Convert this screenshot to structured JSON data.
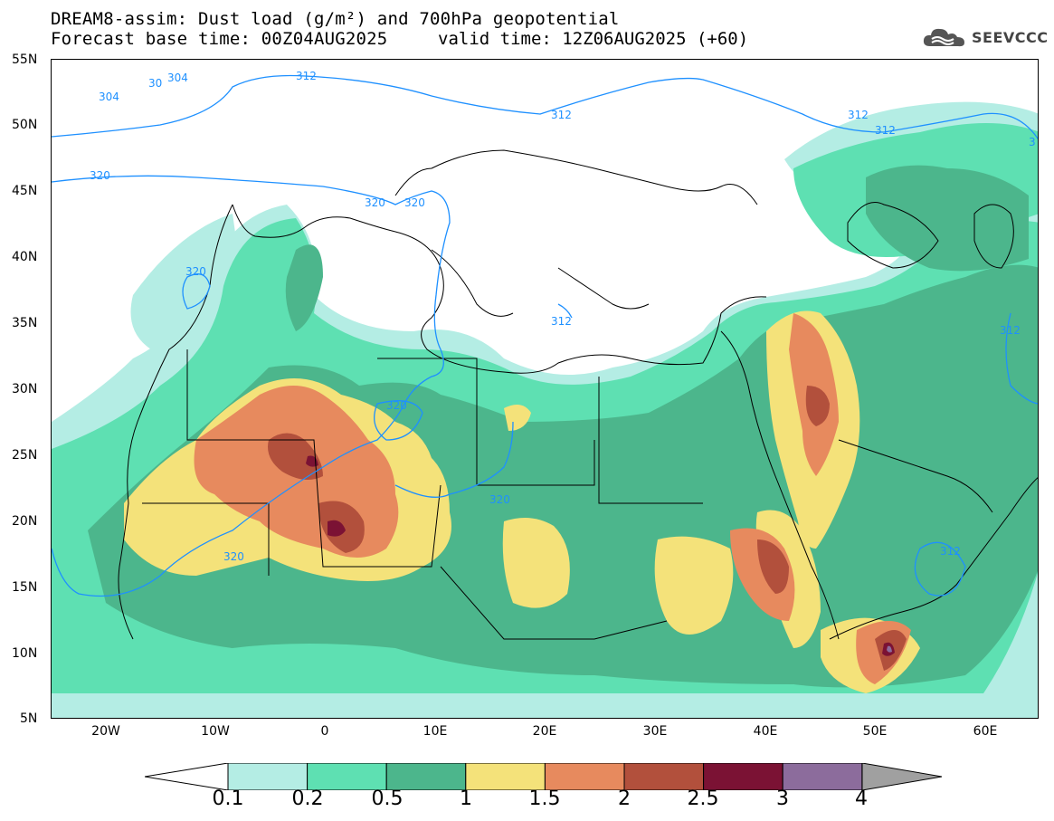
{
  "title_line1": "DREAM8-assim: Dust load (g/m²) and 700hPa geopotential",
  "title_line2": "Forecast base time: 00Z04AUG2025",
  "valid_time": "valid time: 12Z06AUG2025 (+60)",
  "logo_text": "SEEVCCC",
  "lat_labels": [
    "55N",
    "50N",
    "45N",
    "40N",
    "35N",
    "30N",
    "25N",
    "20N",
    "15N",
    "10N",
    "5N"
  ],
  "lon_labels": [
    "20W",
    "10W",
    "0",
    "10E",
    "20E",
    "30E",
    "40E",
    "50E",
    "60E"
  ],
  "contour_labels": [
    "304",
    "30",
    "304",
    "312",
    "312",
    "312",
    "320",
    "320",
    "320",
    "320",
    "320",
    "320",
    "320",
    "312",
    "312",
    "312",
    "312",
    "3"
  ],
  "colorbar": {
    "levels": [
      "0.1",
      "0.2",
      "0.5",
      "1",
      "1.5",
      "2",
      "2.5",
      "3",
      "4"
    ],
    "colors": [
      "#b4ede4",
      "#5ee0b2",
      "#4cb68c",
      "#f4e27a",
      "#e78a5e",
      "#b2503c",
      "#7b1234",
      "#8c6c9c",
      "#a0a0a0"
    ]
  },
  "map_colors": {
    "land_line": "#000000",
    "contour": "#1e90ff"
  }
}
